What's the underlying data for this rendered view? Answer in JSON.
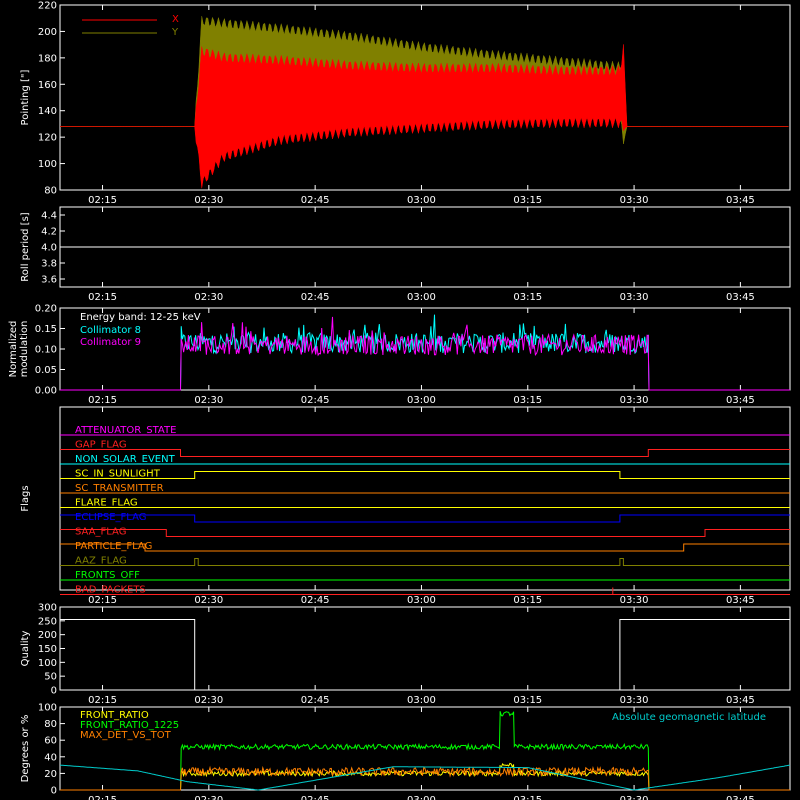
{
  "chart_data": [
    {
      "type": "line",
      "ylabel": "Pointing [\"]",
      "ylim": [
        80,
        220
      ],
      "yticks": [
        80,
        100,
        120,
        140,
        160,
        180,
        200,
        220
      ],
      "xticks": [
        "02:15",
        "02:30",
        "02:45",
        "03:00",
        "03:15",
        "03:30",
        "03:45"
      ],
      "legend": "top-left",
      "series": [
        {
          "name": "X",
          "color": "#ff0000",
          "x": [
            "02:09",
            "02:28",
            "02:29",
            "02:32",
            "02:40",
            "02:50",
            "03:00",
            "03:10",
            "03:20",
            "03:28",
            "03:28.5",
            "03:29",
            "03:52"
          ],
          "low": [
            128,
            128,
            85,
            105,
            118,
            124,
            127,
            130,
            131,
            131,
            128,
            128,
            128
          ],
          "high": [
            128,
            128,
            185,
            180,
            178,
            174,
            172,
            172,
            170,
            170,
            187,
            128,
            128
          ]
        },
        {
          "name": "Y",
          "color": "#808000",
          "x": [
            "02:09",
            "02:28",
            "02:29",
            "02:32",
            "02:40",
            "02:50",
            "03:00",
            "03:10",
            "03:20",
            "03:28",
            "03:28.5",
            "03:29",
            "03:52"
          ],
          "low": [
            128,
            128,
            123,
            128,
            132,
            133,
            133,
            134,
            134,
            134,
            118,
            128,
            128
          ],
          "high": [
            128,
            128,
            208,
            206,
            202,
            196,
            188,
            182,
            177,
            173,
            180,
            128,
            128
          ]
        }
      ]
    },
    {
      "type": "line",
      "ylabel": "Roll period [s]",
      "ylim": [
        3.5,
        4.5
      ],
      "yticks": [
        "3.6",
        "3.8",
        "4.0",
        "4.2",
        "4.4"
      ],
      "xticks": [
        "02:15",
        "02:30",
        "02:45",
        "03:00",
        "03:15",
        "03:30",
        "03:45"
      ],
      "series": [
        {
          "color": "#ffffff",
          "x": [
            "02:09",
            "03:52"
          ],
          "y": [
            4.0,
            4.0
          ]
        }
      ]
    },
    {
      "type": "line",
      "ylabel": "Normalized modulation",
      "ylim": [
        0,
        0.2
      ],
      "yticks": [
        "0.00",
        "0.05",
        "0.10",
        "0.15",
        "0.20"
      ],
      "xticks": [
        "02:15",
        "02:30",
        "02:45",
        "03:00",
        "03:15",
        "03:30",
        "03:45"
      ],
      "annotation": "Energy band: 12-25 keV",
      "legend": "top-left",
      "series": [
        {
          "name": "Collimator 8",
          "color": "#00ffff",
          "x": [
            "02:09",
            "02:26",
            "02:26.1",
            "03:32",
            "03:32.1",
            "03:52"
          ],
          "y": [
            0,
            0,
            0.115,
            0.115,
            0,
            0
          ]
        },
        {
          "name": "Collimator 9",
          "color": "#ff00ff",
          "x": [
            "02:09",
            "02:26",
            "02:26.1",
            "03:32",
            "03:32.1",
            "03:52"
          ],
          "y": [
            0,
            0,
            0.11,
            0.11,
            0,
            0
          ]
        }
      ]
    },
    {
      "type": "line",
      "ylabel": "Flags",
      "xticks": [
        "02:15",
        "02:30",
        "02:45",
        "03:00",
        "03:15",
        "03:30",
        "03:45"
      ],
      "series": [
        {
          "name": "ATTENUATOR_STATE",
          "color": "#ff00ff",
          "x": [
            "02:09",
            "03:52"
          ],
          "y": [
            0,
            0
          ]
        },
        {
          "name": "GAP_FLAG",
          "color": "#ff2020",
          "x": [
            "02:09",
            "02:26",
            "02:26",
            "03:32",
            "03:32",
            "03:52"
          ],
          "y": [
            0,
            0,
            -1,
            -1,
            0,
            0
          ]
        },
        {
          "name": "NON_SOLAR_EVENT",
          "color": "#00ffff",
          "x": [
            "02:09",
            "03:52"
          ],
          "y": [
            0,
            0
          ]
        },
        {
          "name": "SC_IN_SUNLIGHT",
          "color": "#ffff00",
          "x": [
            "02:09",
            "02:28",
            "02:28",
            "03:28",
            "03:28",
            "03:52"
          ],
          "y": [
            0,
            0,
            1,
            1,
            0,
            0
          ]
        },
        {
          "name": "SC_TRANSMITTER",
          "color": "#ff8000",
          "x": [
            "02:09",
            "03:52"
          ],
          "y": [
            0,
            0
          ]
        },
        {
          "name": "FLARE_FLAG",
          "color": "#ffff00",
          "x": [
            "02:09",
            "03:52"
          ],
          "y": [
            0,
            0
          ]
        },
        {
          "name": "ECLIPSE_FLAG",
          "color": "#0000ff",
          "x": [
            "02:09",
            "02:28",
            "02:28",
            "03:28",
            "03:28",
            "03:52"
          ],
          "y": [
            1,
            1,
            0,
            0,
            1,
            1
          ]
        },
        {
          "name": "SAA_FLAG",
          "color": "#ff2020",
          "x": [
            "02:09",
            "02:24",
            "02:24",
            "03:40",
            "03:40",
            "03:52"
          ],
          "y": [
            1,
            1,
            0,
            0,
            1,
            1
          ]
        },
        {
          "name": "PARTICLE_FLAG",
          "color": "#ff8000",
          "x": [
            "02:09",
            "02:21",
            "02:21",
            "03:37",
            "03:37",
            "03:52"
          ],
          "y": [
            1,
            1,
            0,
            0,
            1,
            1
          ]
        },
        {
          "name": "AAZ_FLAG",
          "color": "#808000",
          "x": [
            "02:09",
            "02:28",
            "02:28",
            "02:28.5",
            "02:28.5",
            "03:28",
            "03:28",
            "03:28.5",
            "03:28.5",
            "03:52"
          ],
          "y": [
            0,
            0,
            1,
            1,
            0,
            0,
            1,
            1,
            0,
            0
          ]
        },
        {
          "name": "FRONTS_OFF",
          "color": "#00ff00",
          "x": [
            "02:09",
            "03:52"
          ],
          "y": [
            0,
            0
          ]
        },
        {
          "name": "BAD_PACKETS",
          "color": "#ff2020",
          "x": [
            "02:09",
            "03:27",
            "03:27",
            "03:27",
            "03:52"
          ],
          "y": [
            0,
            0,
            1,
            0,
            0
          ]
        }
      ]
    },
    {
      "type": "line",
      "ylabel": "Quality",
      "ylim": [
        0,
        300
      ],
      "yticks": [
        "0",
        "50",
        "100",
        "150",
        "200",
        "250",
        "300"
      ],
      "xticks": [
        "02:15",
        "02:30",
        "02:45",
        "03:00",
        "03:15",
        "03:30",
        "03:45"
      ],
      "series": [
        {
          "color": "#ffffff",
          "x": [
            "02:09",
            "02:28",
            "02:28",
            "03:28",
            "03:28",
            "03:52"
          ],
          "y": [
            255,
            255,
            0,
            0,
            255,
            255
          ]
        }
      ]
    },
    {
      "type": "line",
      "ylabel": "Degrees or %",
      "ylim": [
        0,
        100
      ],
      "yticks": [
        "0",
        "20",
        "40",
        "60",
        "80",
        "100"
      ],
      "xticks": [
        "02:15",
        "02:30",
        "02:45",
        "03:00",
        "03:15",
        "03:30",
        "03:45"
      ],
      "legend": "top-left",
      "right_label": "Absolute geomagnetic latitude",
      "series": [
        {
          "name": "FRONT_RATIO",
          "color": "#ffff00",
          "x": [
            "02:09",
            "02:26",
            "02:26.1",
            "03:11",
            "03:11.1",
            "03:13",
            "03:13.1",
            "03:32",
            "03:32.1",
            "03:52"
          ],
          "y": [
            0,
            0,
            20,
            20,
            30,
            30,
            20,
            20,
            0,
            0
          ]
        },
        {
          "name": "FRONT_RATIO_1225",
          "color": "#00ff00",
          "x": [
            "02:09",
            "02:26",
            "02:26.1",
            "03:11",
            "03:11.1",
            "03:13",
            "03:13.1",
            "03:32",
            "03:32.1",
            "03:52"
          ],
          "y": [
            0,
            0,
            52,
            52,
            92,
            92,
            52,
            52,
            0,
            0
          ]
        },
        {
          "name": "MAX_DET_VS_TOT",
          "color": "#ff8000",
          "x": [
            "02:09",
            "02:26",
            "02:26.1",
            "03:32",
            "03:32.1",
            "03:52"
          ],
          "y": [
            0,
            0,
            22,
            22,
            0,
            0
          ]
        },
        {
          "name": "Absolute geomagnetic latitude",
          "color": "#00cccc",
          "x": [
            "02:09",
            "02:20",
            "02:27",
            "02:37",
            "02:56",
            "03:15",
            "03:30",
            "03:42",
            "03:52"
          ],
          "y": [
            30,
            23,
            10,
            0,
            28,
            27,
            0,
            15,
            30
          ]
        }
      ]
    }
  ]
}
